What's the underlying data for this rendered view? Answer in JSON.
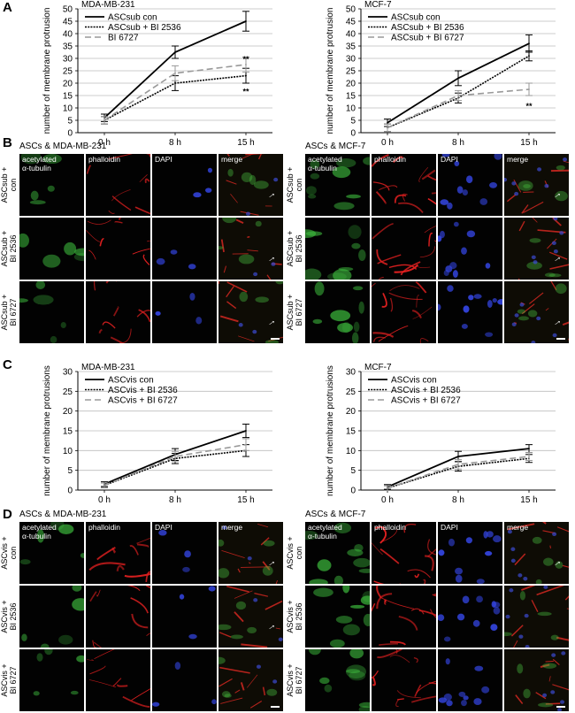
{
  "panel_letters": {
    "a": "A",
    "b": "B",
    "c": "C",
    "d": "D"
  },
  "chart_data": [
    {
      "type": "line",
      "title": "MDA-MB-231",
      "ylabel": "number of membrane protrusion",
      "categories": [
        "0 h",
        "8 h",
        "15 h"
      ],
      "ylim": [
        0,
        50
      ],
      "yticks": [
        0,
        5,
        10,
        15,
        20,
        25,
        30,
        35,
        40,
        45,
        50
      ],
      "grid": true,
      "legend": "top-left",
      "series": [
        {
          "name": "ASCsub con",
          "values": [
            6,
            32.5,
            45
          ],
          "err": [
            1.5,
            2.5,
            4
          ],
          "style": "solid",
          "color": "#000000"
        },
        {
          "name": "ASCsub + BI 2536",
          "values": [
            5,
            20,
            23
          ],
          "err": [
            1.5,
            3,
            3
          ],
          "style": "dotted",
          "color": "#000000"
        },
        {
          "name": "BI 6727",
          "values": [
            5,
            24,
            27.5
          ],
          "err": [
            1.5,
            3,
            3
          ],
          "style": "dashed",
          "color": "#999999"
        }
      ],
      "annotations": [
        {
          "text": "**",
          "category": "15 h",
          "value": 30
        },
        {
          "text": "**",
          "category": "15 h",
          "value": 17
        }
      ]
    },
    {
      "type": "line",
      "title": "MCF-7",
      "ylabel": "number of membrane protrusion",
      "categories": [
        "0 h",
        "8 h",
        "15 h"
      ],
      "ylim": [
        0,
        50
      ],
      "yticks": [
        0,
        5,
        10,
        15,
        20,
        25,
        30,
        35,
        40,
        45,
        50
      ],
      "grid": true,
      "legend": "top-left",
      "series": [
        {
          "name": "ASCsub con",
          "values": [
            4,
            22,
            36
          ],
          "err": [
            1.5,
            3,
            3.5
          ],
          "style": "solid",
          "color": "#000000"
        },
        {
          "name": "ASCsub + BI 2536",
          "values": [
            2,
            14,
            31
          ],
          "err": [
            1.5,
            2,
            2
          ],
          "style": "dotted",
          "color": "#000000"
        },
        {
          "name": "ASCsub + BI 6727",
          "values": [
            2,
            15,
            17.5
          ],
          "err": [
            1.5,
            2,
            2.5
          ],
          "style": "dashed",
          "color": "#999999"
        }
      ],
      "annotations": [
        {
          "text": "**",
          "category": "15 h",
          "value": 11
        }
      ]
    },
    {
      "type": "line",
      "title": "MDA-MB-231",
      "ylabel": "number of membrane protrusions",
      "categories": [
        "0 h",
        "8 h",
        "15 h"
      ],
      "ylim": [
        0,
        30
      ],
      "yticks": [
        0,
        5,
        10,
        15,
        20,
        25,
        30
      ],
      "grid": true,
      "legend": "top-left",
      "series": [
        {
          "name": "ASCvis con",
          "values": [
            1.5,
            9,
            15
          ],
          "err": [
            0.6,
            1.5,
            1.7
          ],
          "style": "solid",
          "color": "#000000"
        },
        {
          "name": "ASCvis + BI 2536",
          "values": [
            1.2,
            8,
            10
          ],
          "err": [
            0.6,
            1.3,
            1.5
          ],
          "style": "dotted",
          "color": "#000000"
        },
        {
          "name": "ASCvis + BI 6727",
          "values": [
            1.2,
            8.5,
            11.5
          ],
          "err": [
            0.6,
            1.3,
            1.5
          ],
          "style": "dashed",
          "color": "#999999"
        }
      ]
    },
    {
      "type": "line",
      "title": "MCF-7",
      "ylabel": "number of membrane protrusions",
      "categories": [
        "0 h",
        "8 h",
        "15 h"
      ],
      "ylim": [
        0,
        30
      ],
      "yticks": [
        0,
        5,
        10,
        15,
        20,
        25,
        30
      ],
      "grid": true,
      "legend": "top-left",
      "series": [
        {
          "name": "ASCvis con",
          "values": [
            0.8,
            8.5,
            10.5
          ],
          "err": [
            0.6,
            1.3,
            1
          ],
          "style": "solid",
          "color": "#000000"
        },
        {
          "name": "ASCvis + BI 2536",
          "values": [
            0.5,
            6,
            8
          ],
          "err": [
            0.6,
            1.2,
            1
          ],
          "style": "dotted",
          "color": "#000000"
        },
        {
          "name": "ASCvis + BI 6727",
          "values": [
            0.5,
            6.5,
            8.5
          ],
          "err": [
            0.6,
            1.2,
            1
          ],
          "style": "dashed",
          "color": "#999999"
        }
      ]
    }
  ],
  "image_panels": {
    "B": {
      "left": {
        "title": "ASCs & MDA-MB-231",
        "rows": [
          "ASCsub +\ncon",
          "ASCsub +\nBI 2536",
          "ASCsub +\nBI 6727"
        ],
        "arrows": [
          "→",
          "→",
          "→"
        ]
      },
      "right": {
        "title": "ASCs & MCF-7",
        "rows": [
          "ASCsub +\ncon",
          "ASCsub +\nBI 2536",
          "ASCsub +\nBI 6727"
        ],
        "arrows": [
          "→",
          "→",
          "→"
        ]
      }
    },
    "D": {
      "left": {
        "title": "ASCs & MDA-MB-231",
        "rows": [
          "ASCvis +\ncon",
          "ASCvis +\nBI 2536",
          "ASCvis +\nBI 6727"
        ],
        "arrows": [
          "→",
          "→"
        ]
      },
      "right": {
        "title": "ASCs & MCF-7",
        "rows": [
          "ASCvis +\ncon",
          "ASCvis +\nBI 2536",
          "ASCvis +\nBI 6727"
        ],
        "arrows": [
          "→"
        ]
      }
    },
    "channels": [
      {
        "label": "acetylated\nα-tubulin",
        "color": "#3fbf3f"
      },
      {
        "label": "phalloidin",
        "color": "#e02020"
      },
      {
        "label": "DAPI",
        "color": "#3344dd"
      },
      {
        "label": "merge",
        "color": "#d8c040"
      }
    ]
  }
}
